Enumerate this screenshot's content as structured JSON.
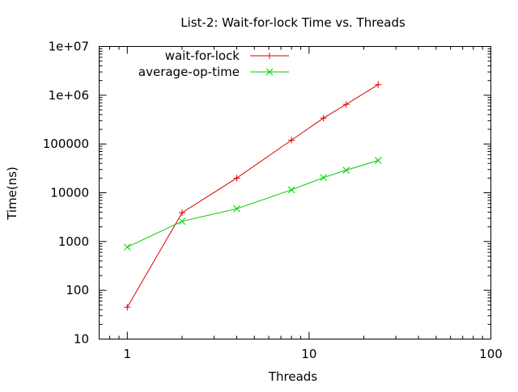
{
  "chart_data": {
    "type": "line",
    "title": "List-2: Wait-for-lock Time vs. Threads",
    "xlabel": "Threads",
    "ylabel": "Time(ns)",
    "xscale": "log",
    "yscale": "log",
    "xlim": [
      0.7,
      100
    ],
    "ylim": [
      10,
      10000000
    ],
    "xticks": [
      {
        "value": 1,
        "label": "1"
      },
      {
        "value": 10,
        "label": "10"
      },
      {
        "value": 100,
        "label": "100"
      }
    ],
    "yticks": [
      {
        "value": 10,
        "label": "10"
      },
      {
        "value": 100,
        "label": "100"
      },
      {
        "value": 1000,
        "label": "1000"
      },
      {
        "value": 10000,
        "label": "10000"
      },
      {
        "value": 100000,
        "label": "100000"
      },
      {
        "value": 1000000,
        "label": "1e+06"
      },
      {
        "value": 10000000,
        "label": "1e+07"
      }
    ],
    "grid": false,
    "legend_position": "top-left",
    "series": [
      {
        "name": "wait-for-lock",
        "color": "#dd0000",
        "marker": "plus",
        "x": [
          1,
          2,
          4,
          8,
          12,
          16,
          24
        ],
        "y": [
          45,
          3900,
          20000,
          120000,
          340000,
          650000,
          1650000
        ]
      },
      {
        "name": "average-op-time",
        "color": "#00cc00",
        "marker": "cross",
        "x": [
          1,
          2,
          4,
          8,
          12,
          16,
          24
        ],
        "y": [
          770,
          2600,
          4700,
          11500,
          20500,
          29000,
          46000
        ]
      }
    ]
  }
}
